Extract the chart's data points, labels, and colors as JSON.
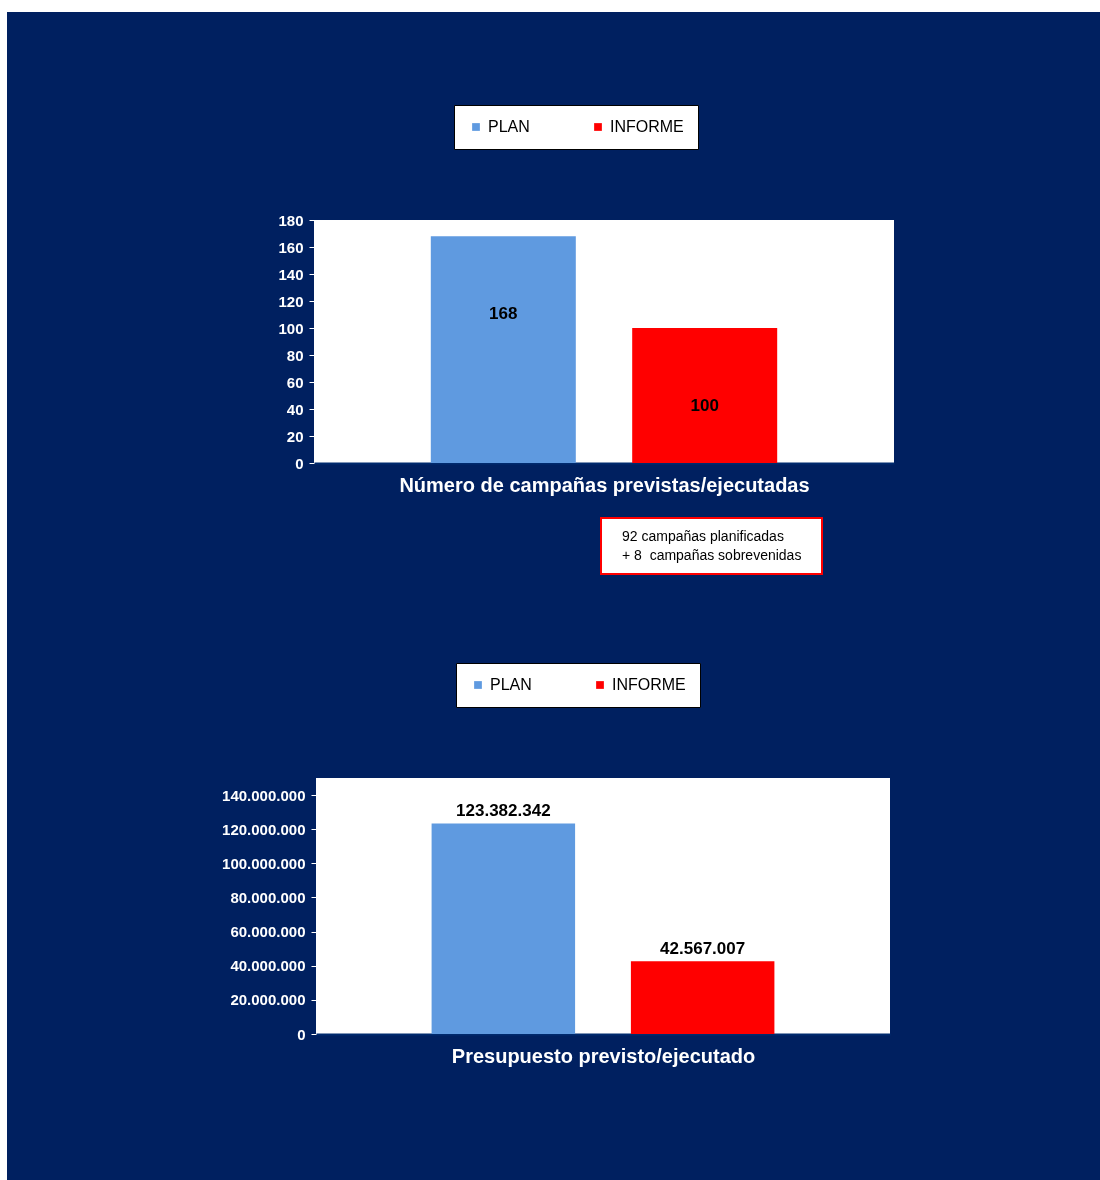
{
  "chart_data": [
    {
      "type": "bar",
      "categories": [
        null
      ],
      "xlabel": "Número de campañas previstas/ejecutadas",
      "series": [
        {
          "name": "PLAN",
          "color": "#5f9ae0",
          "values": [
            168
          ]
        },
        {
          "name": "INFORME",
          "color": "#ff0000",
          "values": [
            100
          ]
        }
      ],
      "ylim": [
        0,
        180
      ],
      "yticks": [
        0,
        20,
        40,
        60,
        80,
        100,
        120,
        140,
        160,
        180
      ],
      "tick_labels": "y",
      "grid": false,
      "legend": "top",
      "data_labels": true,
      "annotations": [
        "92 campañas planificadas\n+ 8  campañas sobrevenidas"
      ]
    },
    {
      "type": "bar",
      "categories": [
        null
      ],
      "xlabel": "Presupuesto previsto/ejecutado",
      "series": [
        {
          "name": "PLAN",
          "color": "#5f9ae0",
          "values": [
            123382342
          ],
          "value_labels": [
            "123.382.342"
          ]
        },
        {
          "name": "INFORME",
          "color": "#ff0000",
          "values": [
            42567007
          ],
          "value_labels": [
            "42.567.007"
          ]
        }
      ],
      "ylim": [
        0,
        150000000
      ],
      "yticks": [
        0,
        {
          "value": 20000000,
          "label": "20.000.000"
        },
        {
          "value": 40000000,
          "label": "40.000.000"
        },
        {
          "value": 60000000,
          "label": "60.000.000"
        },
        {
          "value": 80000000,
          "label": "80.000.000"
        },
        {
          "value": 100000000,
          "label": "100.000.000"
        },
        {
          "value": 120000000,
          "label": "120.000.000"
        },
        {
          "value": 140000000,
          "label": "140.000.000"
        }
      ],
      "tick_labels": "y",
      "grid": false,
      "legend": "top"
    }
  ]
}
